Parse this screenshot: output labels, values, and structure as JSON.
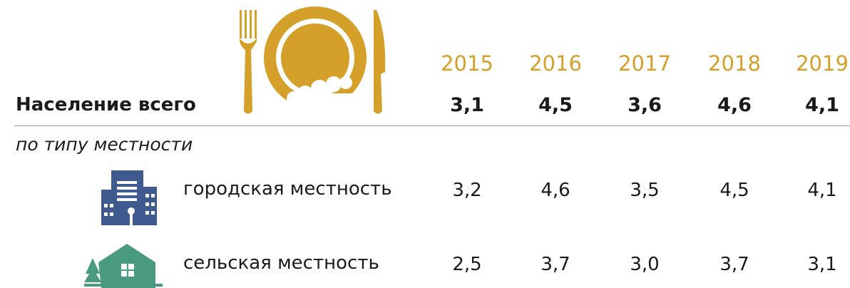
{
  "table": {
    "years": [
      "2015",
      "2016",
      "2017",
      "2018",
      "2019"
    ],
    "total": {
      "label": "Население всего",
      "values": [
        "3,1",
        "4,5",
        "3,6",
        "4,6",
        "4,1"
      ]
    },
    "subtitle": "по типу местности",
    "rows": [
      {
        "label": "городская местность",
        "values": [
          "3,2",
          "4,6",
          "3,5",
          "4,5",
          "4,1"
        ]
      },
      {
        "label": "сельская местность",
        "values": [
          "2,5",
          "3,7",
          "3,0",
          "3,7",
          "3,1"
        ]
      }
    ]
  }
}
